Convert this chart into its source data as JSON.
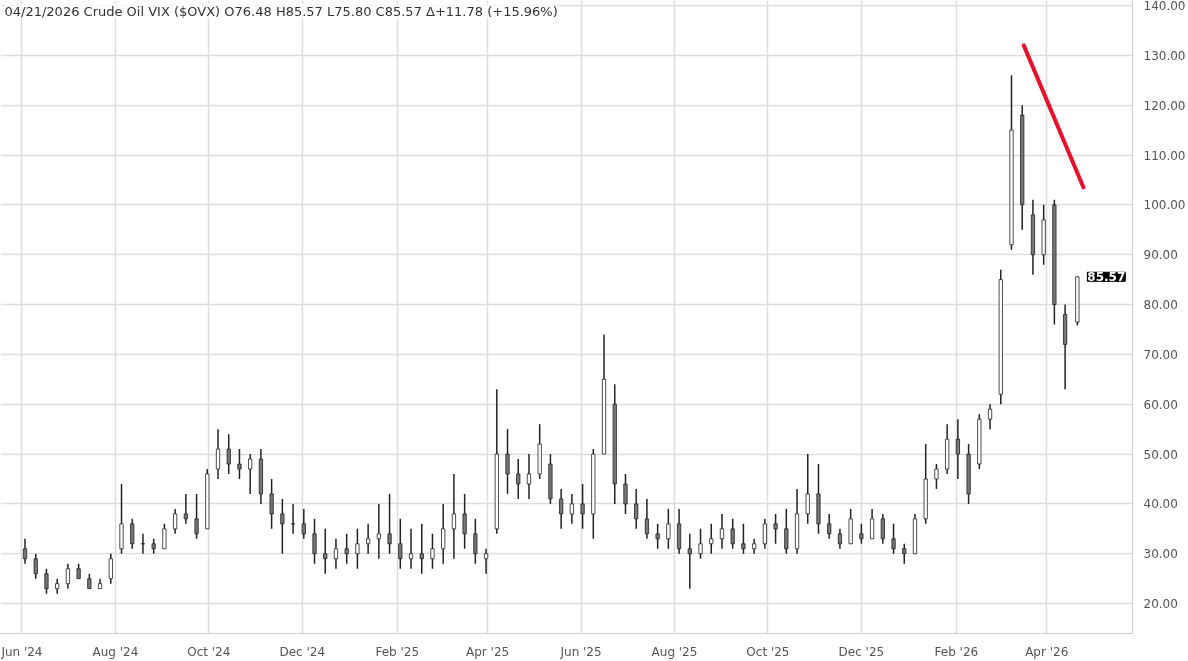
{
  "chart_data": {
    "type": "candlestick",
    "title": "04/21/2026 Crude Oil VIX ($OVX) O76.48 H85.57 L75.80 C85.57 Δ+11.78 (+15.96%)",
    "color": "#222222",
    "x": [
      "2024-06-03",
      "2024-06-10",
      "2024-06-17",
      "2024-06-24",
      "2024-07-01",
      "2024-07-08",
      "2024-07-15",
      "2024-07-22",
      "2024-07-29",
      "2024-08-05",
      "2024-08-12",
      "2024-08-19",
      "2024-08-26",
      "2024-09-02",
      "2024-09-09",
      "2024-09-16",
      "2024-09-23",
      "2024-09-30",
      "2024-10-07",
      "2024-10-14",
      "2024-10-21",
      "2024-10-28",
      "2024-11-04",
      "2024-11-11",
      "2024-11-18",
      "2024-11-25",
      "2024-12-02",
      "2024-12-09",
      "2024-12-16",
      "2024-12-23",
      "2024-12-30",
      "2025-01-06",
      "2025-01-13",
      "2025-01-20",
      "2025-01-27",
      "2025-02-03",
      "2025-02-10",
      "2025-02-17",
      "2025-02-24",
      "2025-03-03",
      "2025-03-10",
      "2025-03-17",
      "2025-03-24",
      "2025-03-31",
      "2025-04-07",
      "2025-04-14",
      "2025-04-21",
      "2025-04-28",
      "2025-05-05",
      "2025-05-12",
      "2025-05-19",
      "2025-05-26",
      "2025-06-02",
      "2025-06-09",
      "2025-06-16",
      "2025-06-23",
      "2025-06-30",
      "2025-07-07",
      "2025-07-14",
      "2025-07-21",
      "2025-07-28",
      "2025-08-04",
      "2025-08-11",
      "2025-08-18",
      "2025-08-25",
      "2025-09-01",
      "2025-09-08",
      "2025-09-15",
      "2025-09-22",
      "2025-09-29",
      "2025-10-06",
      "2025-10-13",
      "2025-10-20",
      "2025-10-27",
      "2025-11-03",
      "2025-11-10",
      "2025-11-17",
      "2025-11-24",
      "2025-12-01",
      "2025-12-08",
      "2025-12-15",
      "2025-12-22",
      "2025-12-29",
      "2026-01-05",
      "2026-01-12",
      "2026-01-19",
      "2026-01-26",
      "2026-02-02",
      "2026-02-09",
      "2026-02-16",
      "2026-02-23",
      "2026-03-02",
      "2026-03-09",
      "2026-03-16",
      "2026-03-23",
      "2026-03-30",
      "2026-04-06",
      "2026-04-13",
      "2026-04-21"
    ],
    "ohlc": [
      [
        31,
        33,
        28,
        29
      ],
      [
        29,
        30,
        25,
        26
      ],
      [
        26,
        27,
        22,
        23
      ],
      [
        23,
        25,
        22,
        24
      ],
      [
        24,
        28,
        23,
        27
      ],
      [
        27,
        28,
        25,
        25
      ],
      [
        25,
        26,
        23,
        23
      ],
      [
        23,
        25,
        23,
        24
      ],
      [
        25,
        30,
        24,
        29
      ],
      [
        31,
        44,
        30,
        36
      ],
      [
        36,
        37,
        31,
        32
      ],
      [
        32,
        34,
        30,
        32
      ],
      [
        32,
        33,
        30,
        31
      ],
      [
        31,
        36,
        31,
        35
      ],
      [
        35,
        39,
        34,
        38
      ],
      [
        38,
        42,
        36,
        37
      ],
      [
        37,
        42,
        33,
        34
      ],
      [
        35,
        47,
        35,
        46
      ],
      [
        47,
        55,
        45,
        51
      ],
      [
        51,
        54,
        46,
        48
      ],
      [
        48,
        51,
        45,
        47
      ],
      [
        47,
        50,
        42,
        49
      ],
      [
        49,
        51,
        40,
        42
      ],
      [
        42,
        45,
        35,
        38
      ],
      [
        38,
        41,
        30,
        36
      ],
      [
        36,
        40,
        34,
        36
      ],
      [
        36,
        39,
        33,
        34
      ],
      [
        34,
        37,
        28,
        30
      ],
      [
        30,
        35,
        26,
        29
      ],
      [
        29,
        33,
        27,
        31
      ],
      [
        31,
        34,
        28,
        30
      ],
      [
        30,
        35,
        27,
        32
      ],
      [
        32,
        36,
        30,
        33
      ],
      [
        33,
        40,
        29,
        34
      ],
      [
        34,
        42,
        30,
        32
      ],
      [
        32,
        37,
        27,
        29
      ],
      [
        29,
        35,
        27,
        30
      ],
      [
        30,
        36,
        26,
        29
      ],
      [
        29,
        34,
        27,
        31
      ],
      [
        31,
        40,
        28,
        35
      ],
      [
        35,
        46,
        29,
        38
      ],
      [
        38,
        42,
        31,
        34
      ],
      [
        34,
        37,
        28,
        30
      ],
      [
        29,
        31,
        26,
        30
      ],
      [
        35,
        63,
        34,
        50
      ],
      [
        50,
        55,
        42,
        46
      ],
      [
        46,
        49,
        41,
        44
      ],
      [
        44,
        50,
        41,
        46
      ],
      [
        46,
        56,
        45,
        52
      ],
      [
        48,
        50,
        40,
        41
      ],
      [
        41,
        43,
        35,
        38
      ],
      [
        38,
        42,
        36,
        40
      ],
      [
        40,
        44,
        35,
        38
      ],
      [
        38,
        51,
        33,
        50
      ],
      [
        50,
        74,
        50,
        65
      ],
      [
        60,
        64,
        40,
        44
      ],
      [
        44,
        46,
        38,
        40
      ],
      [
        40,
        43,
        35,
        37
      ],
      [
        37,
        41,
        33,
        34
      ],
      [
        34,
        36,
        31,
        33
      ],
      [
        33,
        39,
        31,
        36
      ],
      [
        36,
        39,
        30,
        31
      ],
      [
        31,
        34,
        23,
        30
      ],
      [
        30,
        35,
        29,
        32
      ],
      [
        32,
        36,
        30,
        33
      ],
      [
        33,
        38,
        31,
        35
      ],
      [
        35,
        37,
        31,
        32
      ],
      [
        32,
        36,
        30,
        31
      ],
      [
        31,
        33,
        30,
        32
      ],
      [
        32,
        37,
        31,
        36
      ],
      [
        36,
        38,
        32,
        35
      ],
      [
        35,
        39,
        30,
        31
      ],
      [
        31,
        43,
        30,
        38
      ],
      [
        38,
        50,
        36,
        42
      ],
      [
        42,
        48,
        34,
        36
      ],
      [
        36,
        38,
        33,
        34
      ],
      [
        34,
        35,
        31,
        32
      ],
      [
        32,
        39,
        32,
        37
      ],
      [
        34,
        36,
        32,
        33
      ],
      [
        33,
        39,
        33,
        37
      ],
      [
        37,
        38,
        32,
        33
      ],
      [
        33,
        36,
        30,
        31
      ],
      [
        31,
        32,
        28,
        30
      ],
      [
        30,
        38,
        30,
        37
      ],
      [
        37,
        52,
        36,
        45
      ],
      [
        45,
        48,
        43,
        47
      ],
      [
        47,
        56,
        46,
        53
      ],
      [
        53,
        57,
        45,
        50
      ],
      [
        50,
        52,
        40,
        42
      ],
      [
        48,
        58,
        47,
        57
      ],
      [
        57,
        60,
        55,
        59
      ],
      [
        62,
        87,
        60,
        85
      ],
      [
        92,
        126,
        91,
        115
      ],
      [
        118,
        120,
        95,
        100
      ],
      [
        98,
        101,
        86,
        90
      ],
      [
        90,
        100,
        88,
        97
      ],
      [
        100,
        101,
        76,
        80
      ],
      [
        78,
        80,
        63,
        72
      ],
      [
        76.48,
        85.57,
        75.8,
        85.57
      ]
    ],
    "series": [
      {
        "type": "line",
        "color": "#e8112d",
        "x": [
          "2026-03-17",
          "2026-04-25"
        ],
        "values": [
          132,
          103.5
        ]
      }
    ],
    "annotations": [
      {
        "text": "85.57",
        "x": "2026-04-21",
        "y": 85.57
      }
    ],
    "xlim": [
      "2024-05-18",
      "2026-05-27"
    ],
    "xticks": [
      {
        "value": "2024-06-01",
        "label": "Jun '24"
      },
      {
        "value": "2024-08-01",
        "label": "Aug '24"
      },
      {
        "value": "2024-10-01",
        "label": "Oct '24"
      },
      {
        "value": "2024-12-01",
        "label": "Dec '24"
      },
      {
        "value": "2025-02-01",
        "label": "Feb '25"
      },
      {
        "value": "2025-04-01",
        "label": "Apr '25"
      },
      {
        "value": "2025-06-01",
        "label": "Jun '25"
      },
      {
        "value": "2025-08-01",
        "label": "Aug '25"
      },
      {
        "value": "2025-10-01",
        "label": "Oct '25"
      },
      {
        "value": "2025-12-01",
        "label": "Dec '25"
      },
      {
        "value": "2026-02-01",
        "label": "Feb '26"
      },
      {
        "value": "2026-04-01",
        "label": "Apr '26"
      }
    ],
    "ylim": [
      14,
      141
    ],
    "yticks": [
      {
        "value": 20,
        "label": "20.00"
      },
      {
        "value": 30,
        "label": "30.00"
      },
      {
        "value": 40,
        "label": "40.00"
      },
      {
        "value": 50,
        "label": "50.00"
      },
      {
        "value": 60,
        "label": "60.00"
      },
      {
        "value": 70,
        "label": "70.00"
      },
      {
        "value": 80,
        "label": "80.00"
      },
      {
        "value": 90,
        "label": "90.00"
      },
      {
        "value": 100,
        "label": "100.00"
      },
      {
        "value": 110,
        "label": "110.00"
      },
      {
        "value": 120,
        "label": "120.00"
      },
      {
        "value": 130,
        "label": "130.00"
      },
      {
        "value": 140,
        "label": "140.00"
      }
    ],
    "grid": true
  }
}
